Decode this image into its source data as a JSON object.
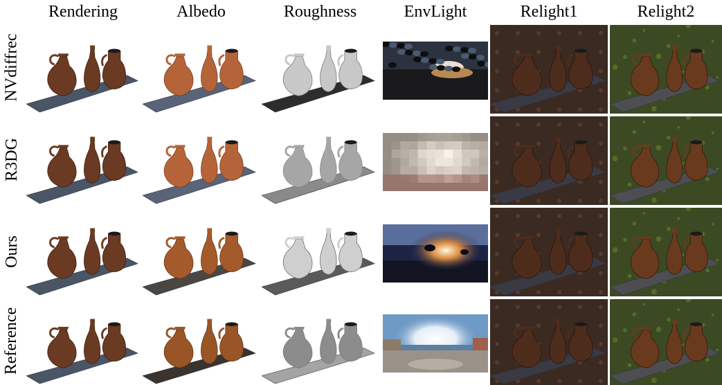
{
  "columns": [
    {
      "label": "Rendering"
    },
    {
      "label": "Albedo"
    },
    {
      "label": "Roughness"
    },
    {
      "label": "EnvLight"
    },
    {
      "label": "Relight1"
    },
    {
      "label": "Relight2"
    }
  ],
  "rows": [
    {
      "label": "NVdiffrec"
    },
    {
      "label": "R3DG"
    },
    {
      "label": "Ours"
    },
    {
      "label": "Reference"
    }
  ],
  "palette": {
    "vase_brown": "#6b3a22",
    "albedo_orange": "#b5643a",
    "roughness_gray": "#9a9a9a",
    "board_blue_gray": "#4a5566",
    "relight1_bg": "#3a2a22",
    "relight2_bg": "#3b4a22"
  }
}
